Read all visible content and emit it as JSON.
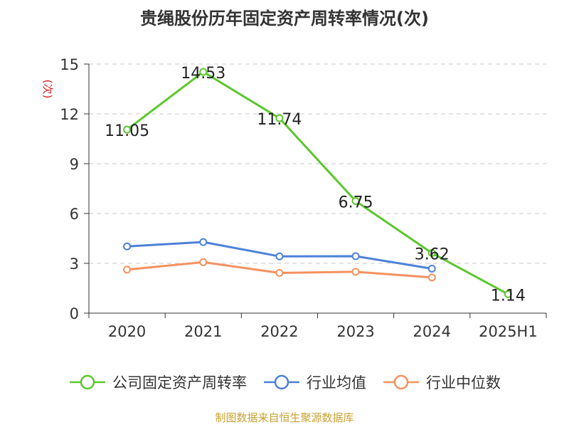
{
  "title": "贵绳股份历年固定资产周转率情况(次)",
  "source": "制图数据来自恒生聚源数据库",
  "chart_data": {
    "type": "line",
    "categories": [
      "2020",
      "2021",
      "2022",
      "2023",
      "2024",
      "2025H1"
    ],
    "ylabel": "(次)",
    "ylim": [
      0,
      15
    ],
    "yticks": [
      0,
      3,
      6,
      9,
      12,
      15
    ],
    "grid": true,
    "legend_position": "bottom",
    "series": [
      {
        "name": "公司固定资产周转率",
        "color": "#5cc72d",
        "values": [
          11.05,
          14.53,
          11.74,
          6.75,
          3.62,
          1.14
        ],
        "labels": [
          "11.05",
          "14.53",
          "11.74",
          "6.75",
          "3.62",
          "1.14"
        ]
      },
      {
        "name": "行业均值",
        "color": "#4e80d8",
        "values": [
          4.02,
          4.28,
          3.42,
          3.43,
          2.68,
          null
        ]
      },
      {
        "name": "行业中位数",
        "color": "#f5915f",
        "values": [
          2.62,
          3.07,
          2.42,
          2.49,
          2.15,
          null
        ]
      }
    ]
  }
}
